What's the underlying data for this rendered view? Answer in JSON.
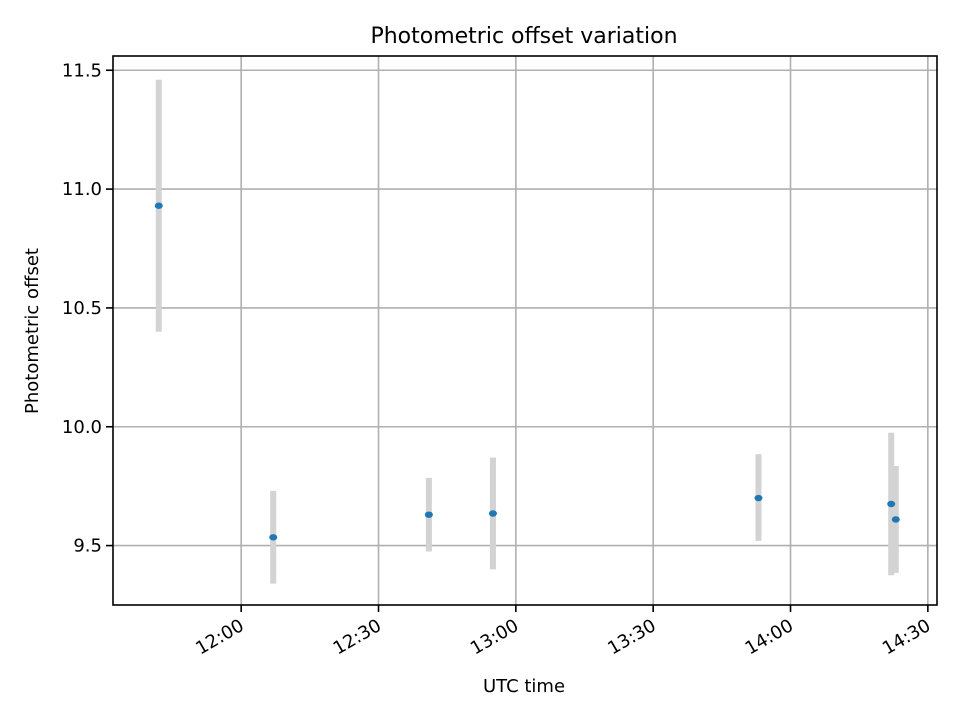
{
  "chart_data": {
    "type": "scatter",
    "title": "Photometric offset variation",
    "xlabel": "UTC time",
    "ylabel": "Photometric offset",
    "xlim": [
      "11:32",
      "14:32"
    ],
    "ylim": [
      9.25,
      11.56
    ],
    "grid": true,
    "x_ticks": [
      "12:00",
      "12:30",
      "13:00",
      "13:30",
      "14:00",
      "14:30"
    ],
    "y_ticks": [
      9.5,
      10.0,
      10.5,
      11.0,
      11.5
    ],
    "y_tick_labels": [
      "9.5",
      "10.0",
      "10.5",
      "11.0",
      "11.5"
    ],
    "colors": {
      "point": "#1f77b4",
      "errorbar": "#d3d3d3",
      "grid": "#b0b0b0"
    },
    "points": [
      {
        "x": "11:42",
        "y": 10.93,
        "err_low": 10.4,
        "err_high": 11.46
      },
      {
        "x": "12:07",
        "y": 9.535,
        "err_low": 9.34,
        "err_high": 9.73
      },
      {
        "x": "12:41",
        "y": 9.63,
        "err_low": 9.475,
        "err_high": 9.785
      },
      {
        "x": "12:55",
        "y": 9.635,
        "err_low": 9.4,
        "err_high": 9.87
      },
      {
        "x": "13:53",
        "y": 9.7,
        "err_low": 9.52,
        "err_high": 9.885
      },
      {
        "x": "14:22",
        "y": 9.675,
        "err_low": 9.375,
        "err_high": 9.975
      },
      {
        "x": "14:23",
        "y": 9.61,
        "err_low": 9.385,
        "err_high": 9.835
      }
    ]
  }
}
